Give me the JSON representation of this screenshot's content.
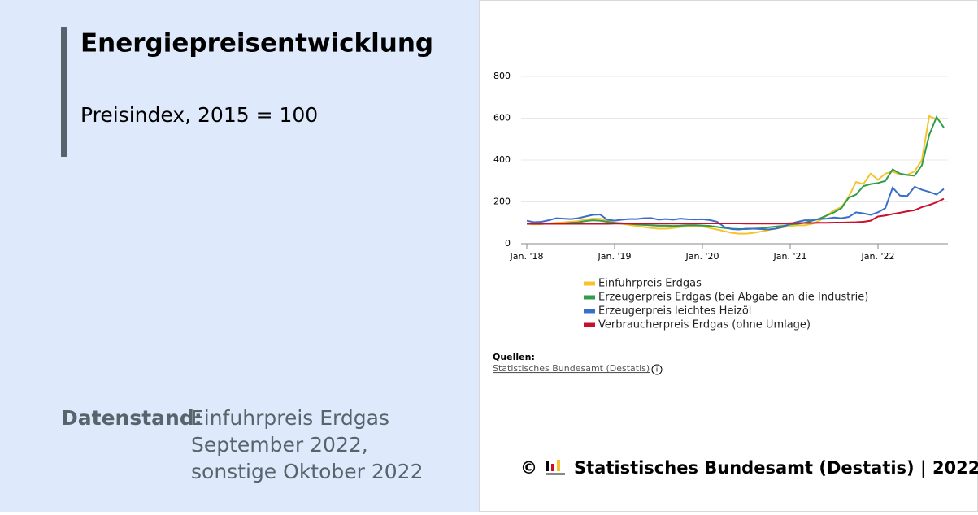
{
  "chart_data": {
    "type": "line",
    "title": "Energiepreisentwicklung",
    "subtitle": "Preisindex, 2015 = 100",
    "categories": [
      "Jan. '18",
      null,
      null,
      null,
      null,
      null,
      null,
      null,
      null,
      null,
      null,
      null,
      "Jan. '19",
      null,
      null,
      null,
      null,
      null,
      null,
      null,
      null,
      null,
      null,
      null,
      "Jan. '20",
      null,
      null,
      null,
      null,
      null,
      null,
      null,
      null,
      null,
      null,
      null,
      "Jan. '21",
      null,
      null,
      null,
      null,
      null,
      null,
      null,
      null,
      null,
      null,
      null,
      "Jan. '22",
      null,
      null,
      null,
      null,
      null,
      null,
      null,
      null,
      null
    ],
    "series": [
      {
        "name": "Einfuhrpreis Erdgas",
        "color": "#f5c32c",
        "values": [
          95,
          92,
          93,
          97,
          100,
          102,
          105,
          108,
          115,
          120,
          120,
          110,
          100,
          95,
          90,
          85,
          80,
          75,
          72,
          72,
          75,
          80,
          82,
          85,
          82,
          75,
          68,
          60,
          52,
          48,
          48,
          52,
          58,
          65,
          72,
          78,
          85,
          88,
          88,
          95,
          110,
          135,
          160,
          175,
          225,
          295,
          285,
          335,
          305,
          335,
          345,
          330,
          330,
          345,
          400,
          610,
          595,
          null
        ]
      },
      {
        "name": "Erzeugerpreis Erdgas (bei Abgabe an die Industrie)",
        "color": "#2e9e4b",
        "values": [
          95,
          95,
          95,
          95,
          95,
          97,
          100,
          102,
          108,
          112,
          110,
          105,
          100,
          98,
          95,
          92,
          90,
          88,
          86,
          86,
          85,
          86,
          88,
          88,
          87,
          85,
          80,
          75,
          72,
          70,
          70,
          72,
          74,
          78,
          82,
          85,
          92,
          95,
          100,
          110,
          120,
          135,
          150,
          170,
          220,
          235,
          275,
          285,
          290,
          300,
          355,
          335,
          328,
          325,
          375,
          520,
          605,
          555
        ]
      },
      {
        "name": "Erzeugerpreis leichtes Heizöl",
        "color": "#3a6fc8",
        "values": [
          110,
          103,
          105,
          112,
          122,
          120,
          118,
          122,
          130,
          138,
          140,
          115,
          110,
          115,
          118,
          118,
          122,
          123,
          115,
          118,
          115,
          120,
          117,
          116,
          117,
          113,
          105,
          80,
          70,
          68,
          72,
          72,
          70,
          68,
          72,
          80,
          95,
          105,
          112,
          112,
          118,
          120,
          125,
          122,
          128,
          150,
          145,
          138,
          150,
          170,
          268,
          230,
          228,
          272,
          258,
          248,
          235,
          262
        ]
      },
      {
        "name": "Verbraucherpreis Erdgas (ohne Umlage)",
        "color": "#c8102e",
        "values": [
          95,
          95,
          95,
          95,
          95,
          95,
          95,
          95,
          95,
          95,
          95,
          95,
          96,
          96,
          96,
          96,
          96,
          96,
          96,
          96,
          96,
          96,
          96,
          96,
          97,
          97,
          97,
          97,
          97,
          97,
          96,
          96,
          96,
          96,
          96,
          96,
          98,
          98,
          99,
          99,
          100,
          100,
          101,
          101,
          102,
          103,
          105,
          110,
          130,
          135,
          142,
          148,
          155,
          160,
          175,
          185,
          198,
          215
        ]
      }
    ],
    "ylim": [
      0,
      800
    ],
    "yticks": [
      0,
      200,
      400,
      600,
      800
    ],
    "grid": true,
    "sources_label": "Quellen:",
    "source": "Statistisches Bundesamt (Destatis)"
  },
  "data_status": {
    "label": "Datenstand:",
    "lines": [
      "Einfuhrpreis Erdgas",
      "September 2022,",
      "sonstige Oktober 2022"
    ]
  },
  "footer": {
    "copyright": "©",
    "text": "Statistisches Bundesamt (Destatis) | 2022"
  }
}
